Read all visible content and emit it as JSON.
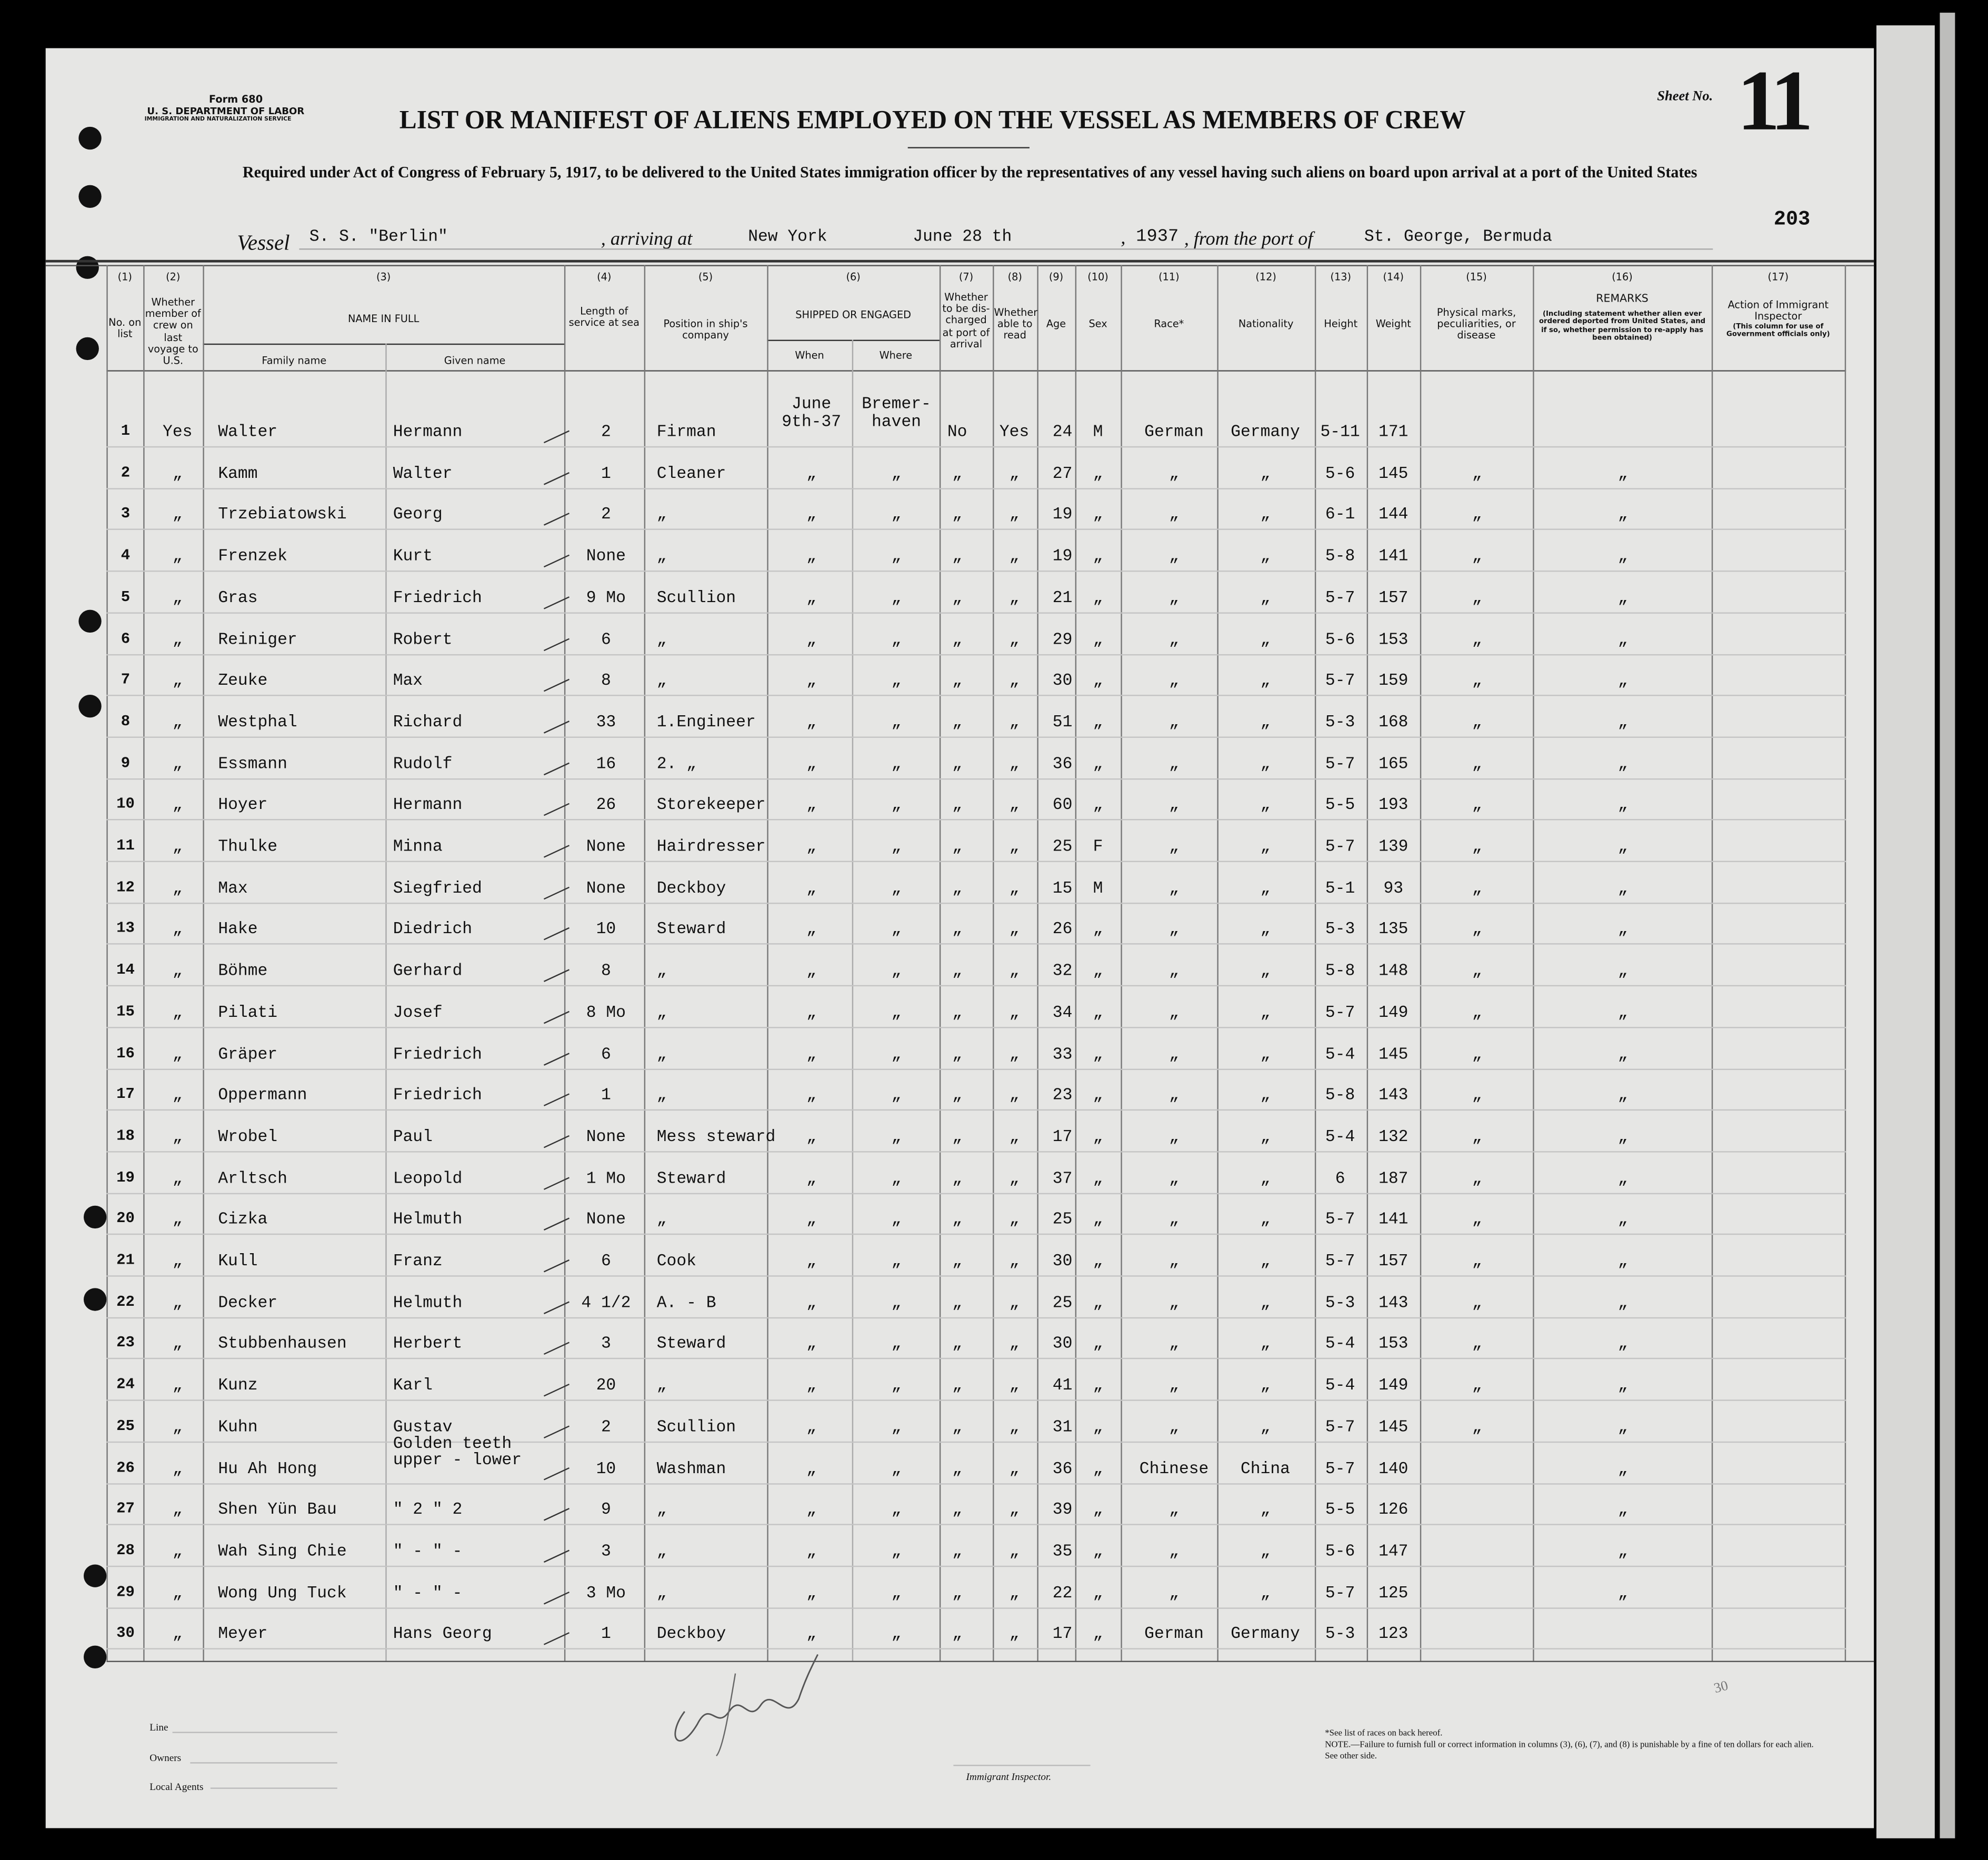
{
  "form": {
    "number": "Form 680",
    "department": "U. S. DEPARTMENT OF LABOR",
    "service": "IMMIGRATION AND NATURALIZATION SERVICE",
    "title": "LIST OR MANIFEST OF ALIENS EMPLOYED ON THE VESSEL AS MEMBERS OF CREW",
    "subtitle": "Required under Act of Congress of February 5, 1917, to be delivered to the United States immigration officer by the representatives of any vessel having such aliens on board upon arrival at a port of the United States",
    "sheet_label": "Sheet No.",
    "sheet_no": "11",
    "stamp_no": "203"
  },
  "voyage": {
    "vessel_label": "Vessel",
    "vessel": "S. S. \"Berlin\"",
    "arriving_label": ", arriving at",
    "arriving": "New York",
    "date": "June 28 th",
    "year": "1937",
    "from_label": ", from the port of",
    "from_port": "St. George, Bermuda"
  },
  "columns": [
    {
      "num": "(1)",
      "label": "No. on list"
    },
    {
      "num": "(2)",
      "label": "Whether member of crew on last voyage to U.S."
    },
    {
      "num": "(3)",
      "label": "NAME IN FULL",
      "sub": [
        "Family name",
        "Given name"
      ]
    },
    {
      "num": "(4)",
      "label": "Length of service at sea"
    },
    {
      "num": "(5)",
      "label": "Position in ship's company"
    },
    {
      "num": "(6)",
      "label": "SHIPPED OR ENGAGED",
      "sub": [
        "When",
        "Where"
      ]
    },
    {
      "num": "(7)",
      "label": "Whether to be dis-charged at port of arrival"
    },
    {
      "num": "(8)",
      "label": "Whether able to read"
    },
    {
      "num": "(9)",
      "label": "Age"
    },
    {
      "num": "(10)",
      "label": "Sex"
    },
    {
      "num": "(11)",
      "label": "Race*"
    },
    {
      "num": "(12)",
      "label": "Nationality"
    },
    {
      "num": "(13)",
      "label": "Height"
    },
    {
      "num": "(14)",
      "label": "Weight"
    },
    {
      "num": "(15)",
      "label": "Physical marks, peculiarities, or disease"
    },
    {
      "num": "(16)",
      "label": "REMARKS",
      "note": "(Including statement whether alien ever ordered deported from United States, and if so, whether permission to re-apply has been obtained)"
    },
    {
      "num": "(17)",
      "label": "Action of Immigrant Inspector",
      "note": "(This column for use of Government officials only)"
    }
  ],
  "rows": [
    [
      "1",
      "Yes",
      "Walter",
      "Hermann",
      "2",
      "Firman",
      "June 9th-37",
      "Bremer-haven",
      "No",
      "Yes",
      "24",
      "M",
      "German",
      "Germany",
      "5-11",
      "171",
      "",
      ""
    ],
    [
      "2",
      "„",
      "Kamm",
      "Walter",
      "1",
      "Cleaner",
      "„",
      "„",
      "„",
      "„",
      "27",
      "„",
      "„",
      "„",
      "5-6",
      "145",
      "„",
      "„"
    ],
    [
      "3",
      "„",
      "Trzebiatowski",
      "Georg",
      "2",
      "„",
      "„",
      "„",
      "„",
      "„",
      "19",
      "„",
      "„",
      "„",
      "6-1",
      "144",
      "„",
      "„"
    ],
    [
      "4",
      "„",
      "Frenzek",
      "Kurt",
      "None",
      "„",
      "„",
      "„",
      "„",
      "„",
      "19",
      "„",
      "„",
      "„",
      "5-8",
      "141",
      "„",
      "„"
    ],
    [
      "5",
      "„",
      "Gras",
      "Friedrich",
      "9 Mo",
      "Scullion",
      "„",
      "„",
      "„",
      "„",
      "21",
      "„",
      "„",
      "„",
      "5-7",
      "157",
      "„",
      "„"
    ],
    [
      "6",
      "„",
      "Reiniger",
      "Robert",
      "6",
      "„",
      "„",
      "„",
      "„",
      "„",
      "29",
      "„",
      "„",
      "„",
      "5-6",
      "153",
      "„",
      "„"
    ],
    [
      "7",
      "„",
      "Zeuke",
      "Max",
      "8",
      "„",
      "„",
      "„",
      "„",
      "„",
      "30",
      "„",
      "„",
      "„",
      "5-7",
      "159",
      "„",
      "„"
    ],
    [
      "8",
      "„",
      "Westphal",
      "Richard",
      "33",
      "1.Engineer",
      "„",
      "„",
      "„",
      "„",
      "51",
      "„",
      "„",
      "„",
      "5-3",
      "168",
      "„",
      "„"
    ],
    [
      "9",
      "„",
      "Essmann",
      "Rudolf",
      "16",
      "2. „",
      "„",
      "„",
      "„",
      "„",
      "36",
      "„",
      "„",
      "„",
      "5-7",
      "165",
      "„",
      "„"
    ],
    [
      "10",
      "„",
      "Hoyer",
      "Hermann",
      "26",
      "Storekeeper",
      "„",
      "„",
      "„",
      "„",
      "60",
      "„",
      "„",
      "„",
      "5-5",
      "193",
      "„",
      "„"
    ],
    [
      "11",
      "„",
      "Thulke",
      "Minna",
      "None",
      "Hairdresser",
      "„",
      "„",
      "„",
      "„",
      "25",
      "F",
      "„",
      "„",
      "5-7",
      "139",
      "„",
      "„"
    ],
    [
      "12",
      "„",
      "Max",
      "Siegfried",
      "None",
      "Deckboy",
      "„",
      "„",
      "„",
      "„",
      "15",
      "M",
      "„",
      "„",
      "5-1",
      "93",
      "„",
      "„"
    ],
    [
      "13",
      "„",
      "Hake",
      "Diedrich",
      "10",
      "Steward",
      "„",
      "„",
      "„",
      "„",
      "26",
      "„",
      "„",
      "„",
      "5-3",
      "135",
      "„",
      "„"
    ],
    [
      "14",
      "„",
      "Böhme",
      "Gerhard",
      "8",
      "„",
      "„",
      "„",
      "„",
      "„",
      "32",
      "„",
      "„",
      "„",
      "5-8",
      "148",
      "„",
      "„"
    ],
    [
      "15",
      "„",
      "Pilati",
      "Josef",
      "8 Mo",
      "„",
      "„",
      "„",
      "„",
      "„",
      "34",
      "„",
      "„",
      "„",
      "5-7",
      "149",
      "„",
      "„"
    ],
    [
      "16",
      "„",
      "Gräper",
      "Friedrich",
      "6",
      "„",
      "„",
      "„",
      "„",
      "„",
      "33",
      "„",
      "„",
      "„",
      "5-4",
      "145",
      "„",
      "„"
    ],
    [
      "17",
      "„",
      "Oppermann",
      "Friedrich",
      "1",
      "„",
      "„",
      "„",
      "„",
      "„",
      "23",
      "„",
      "„",
      "„",
      "5-8",
      "143",
      "„",
      "„"
    ],
    [
      "18",
      "„",
      "Wrobel",
      "Paul",
      "None",
      "Mess steward",
      "„",
      "„",
      "„",
      "„",
      "17",
      "„",
      "„",
      "„",
      "5-4",
      "132",
      "„",
      "„"
    ],
    [
      "19",
      "„",
      "Arltsch",
      "Leopold",
      "1 Mo",
      "Steward",
      "„",
      "„",
      "„",
      "„",
      "37",
      "„",
      "„",
      "„",
      "6",
      "187",
      "„",
      "„"
    ],
    [
      "20",
      "„",
      "Cizka",
      "Helmuth",
      "None",
      "„",
      "„",
      "„",
      "„",
      "„",
      "25",
      "„",
      "„",
      "„",
      "5-7",
      "141",
      "„",
      "„"
    ],
    [
      "21",
      "„",
      "Kull",
      "Franz",
      "6",
      "Cook",
      "„",
      "„",
      "„",
      "„",
      "30",
      "„",
      "„",
      "„",
      "5-7",
      "157",
      "„",
      "„"
    ],
    [
      "22",
      "„",
      "Decker",
      "Helmuth",
      "4 1/2",
      "A. - B",
      "„",
      "„",
      "„",
      "„",
      "25",
      "„",
      "„",
      "„",
      "5-3",
      "143",
      "„",
      "„"
    ],
    [
      "23",
      "„",
      "Stubbenhausen",
      "Herbert",
      "3",
      "Steward",
      "„",
      "„",
      "„",
      "„",
      "30",
      "„",
      "„",
      "„",
      "5-4",
      "153",
      "„",
      "„"
    ],
    [
      "24",
      "„",
      "Kunz",
      "Karl",
      "20",
      "„",
      "„",
      "„",
      "„",
      "„",
      "41",
      "„",
      "„",
      "„",
      "5-4",
      "149",
      "„",
      "„"
    ],
    [
      "25",
      "„",
      "Kuhn",
      "Gustav",
      "2",
      "Scullion",
      "„",
      "„",
      "„",
      "„",
      "31",
      "„",
      "„",
      "„",
      "5-7",
      "145",
      "„",
      "„"
    ],
    [
      "26",
      "„",
      "Hu Ah Hong",
      "Golden teeth upper - lower",
      "10",
      "Washman",
      "„",
      "„",
      "„",
      "„",
      "36",
      "„",
      "Chinese",
      "China",
      "5-7",
      "140",
      "",
      "„"
    ],
    [
      "27",
      "„",
      "Shen Yün Bau",
      "\" 2 \" 2",
      "9",
      "„",
      "„",
      "„",
      "„",
      "„",
      "39",
      "„",
      "„",
      "„",
      "5-5",
      "126",
      "",
      "„"
    ],
    [
      "28",
      "„",
      "Wah Sing Chie",
      "\" - \" -",
      "3",
      "„",
      "„",
      "„",
      "„",
      "„",
      "35",
      "„",
      "„",
      "„",
      "5-6",
      "147",
      "",
      "„"
    ],
    [
      "29",
      "„",
      "Wong Ung Tuck",
      "\" - \" -",
      "3 Mo",
      "„",
      "„",
      "„",
      "„",
      "„",
      "22",
      "„",
      "„",
      "„",
      "5-7",
      "125",
      "",
      "„"
    ],
    [
      "30",
      "„",
      "Meyer",
      "Hans Georg",
      "1",
      "Deckboy",
      "„",
      "„",
      "„",
      "„",
      "17",
      "„",
      "German",
      "Germany",
      "5-3",
      "123",
      "",
      ""
    ]
  ],
  "footer": {
    "line_label": "Line",
    "owners_label": "Owners",
    "agents_label": "Local Agents",
    "inspector_label": "Immigrant Inspector.",
    "races_note": "*See list of races on back hereof.",
    "note": "NOTE.—Failure to furnish full or correct information in columns (3), (6), (7), and (8) is punishable by a fine of ten dollars for each alien. See other side.",
    "margin_mark": "30"
  },
  "colors": {
    "paper": "#e6e6e4",
    "ink": "#111111",
    "frame": "#000000"
  }
}
